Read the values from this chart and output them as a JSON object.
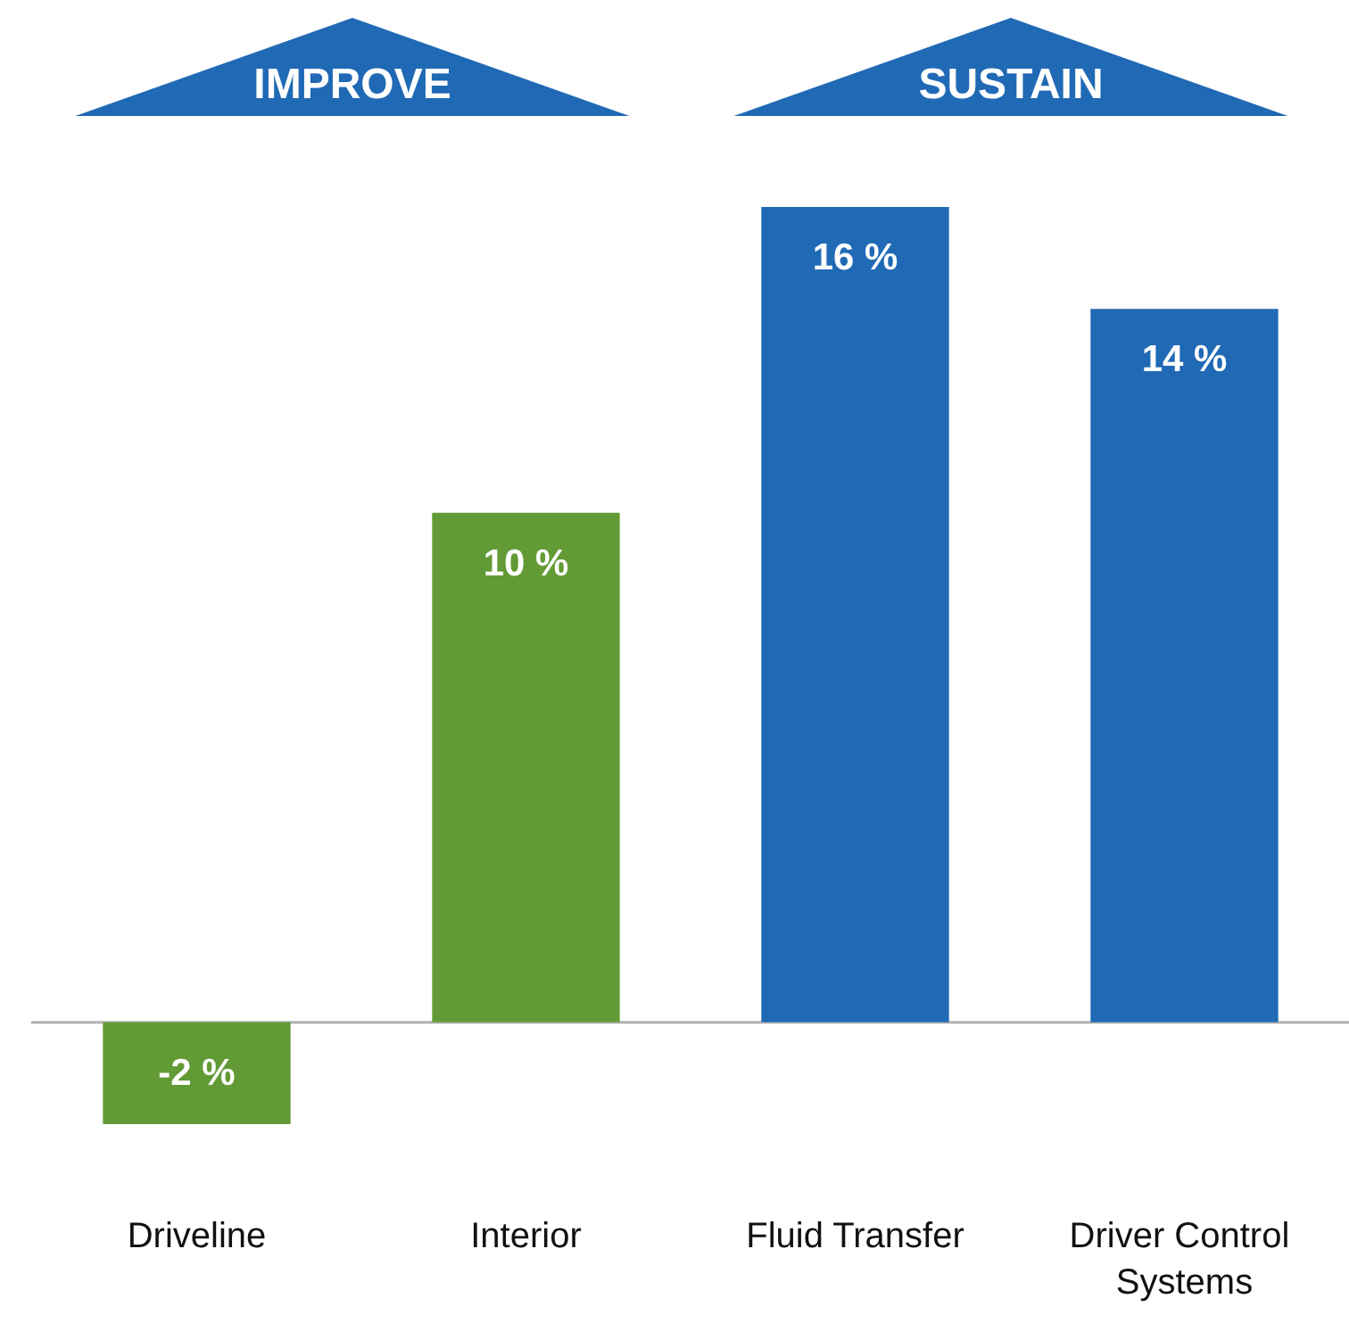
{
  "chart_data": {
    "type": "bar",
    "categories": [
      "Driveline",
      "Interior",
      "Fluid Transfer",
      "Driver Control Systems"
    ],
    "values": [
      -2,
      10,
      16,
      14
    ],
    "colors": [
      "#629b35",
      "#629b35",
      "#2069b5",
      "#2069b5"
    ],
    "value_labels": [
      "-2 %",
      "10 %",
      "16 %",
      "14 %"
    ],
    "annotations": [
      "IMPROVE",
      "SUSTAIN"
    ]
  }
}
